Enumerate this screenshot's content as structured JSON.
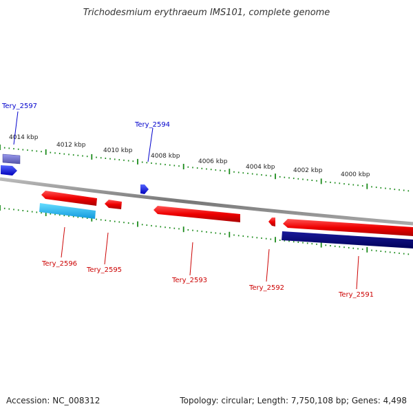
{
  "title": "Trichodesmium erythraeum IMS101, complete genome",
  "footer": {
    "accession": "Accession: NC_008312",
    "summary": "Topology: circular; Length: 7,750,108 bp; Genes: 4,498"
  },
  "scale_labels": [
    "4014 kbp",
    "4012 kbp",
    "4010 kbp",
    "4008 kbp",
    "4006 kbp",
    "4004 kbp",
    "4002 kbp",
    "4000 kbp"
  ],
  "genes": {
    "forward": [
      {
        "label": "Tery_2597",
        "color": "#0000cc"
      },
      {
        "label": "Tery_2594",
        "color": "#0000cc"
      }
    ],
    "reverse": [
      {
        "label": "Tery_2596",
        "color": "#cc0000"
      },
      {
        "label": "Tery_2595",
        "color": "#cc0000"
      },
      {
        "label": "Tery_2593",
        "color": "#cc0000"
      },
      {
        "label": "Tery_2592",
        "color": "#cc0000"
      },
      {
        "label": "Tery_2591",
        "color": "#cc0000"
      }
    ]
  },
  "colors": {
    "backbone": "#8a8a8a",
    "tick": "#1a8a1a",
    "forward_gene": "#1111ee",
    "reverse_gene": "#ee1111",
    "cyan_feature": "#22bbee",
    "navy_feature": "#000080",
    "purple_feature": "#6666cc"
  }
}
